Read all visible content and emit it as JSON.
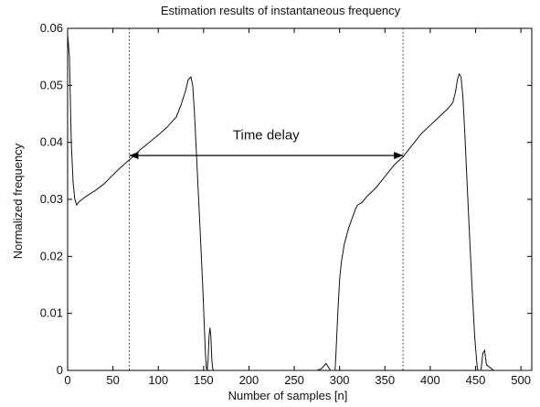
{
  "chart_data": {
    "type": "line",
    "title": "Estimation results of instantaneous frequency",
    "xlabel": "Number of samples [n]",
    "ylabel": "Normalized frequency",
    "xlim": [
      0,
      512
    ],
    "ylim": [
      0,
      0.06
    ],
    "xticks": [
      "0",
      "50",
      "100",
      "150",
      "200",
      "250",
      "300",
      "350",
      "400",
      "450",
      "500"
    ],
    "yticks": [
      "0",
      "0.01",
      "0.02",
      "0.03",
      "0.04",
      "0.05",
      "0.06"
    ],
    "grid": false,
    "series": [
      {
        "x": [
          0,
          2,
          4,
          6,
          8,
          10,
          12,
          20,
          30,
          40,
          50,
          60,
          70,
          80,
          90,
          100,
          110,
          120,
          125,
          130,
          133,
          136,
          138,
          140,
          143,
          146,
          149,
          151,
          152,
          153,
          154,
          155,
          156,
          157,
          158,
          159,
          160,
          161,
          162,
          175,
          200,
          250,
          275,
          280,
          285,
          290,
          295,
          296,
          298,
          300,
          302,
          305,
          310,
          318,
          320,
          325,
          330,
          340,
          350,
          360,
          370,
          380,
          390,
          400,
          410,
          420,
          425,
          428,
          430,
          432,
          434,
          436,
          438,
          440,
          443,
          446,
          449,
          451,
          452,
          453,
          454,
          456,
          458,
          460,
          462,
          470,
          490,
          512
        ],
        "y": [
          0.059,
          0.055,
          0.04,
          0.033,
          0.03,
          0.029,
          0.0295,
          0.0305,
          0.0315,
          0.0327,
          0.0343,
          0.0358,
          0.0372,
          0.0387,
          0.04,
          0.0413,
          0.0427,
          0.0445,
          0.0465,
          0.049,
          0.051,
          0.0515,
          0.05,
          0.045,
          0.035,
          0.025,
          0.015,
          0.007,
          0.003,
          0.0005,
          0.0,
          0.002,
          0.006,
          0.0075,
          0.006,
          0.002,
          0.0003,
          0.0,
          0.0,
          0.0,
          0.0,
          0.0,
          0.0,
          0.0003,
          0.0012,
          0.0,
          0.0,
          0.003,
          0.01,
          0.016,
          0.019,
          0.022,
          0.025,
          0.0285,
          0.029,
          0.0295,
          0.0305,
          0.032,
          0.034,
          0.036,
          0.0375,
          0.0395,
          0.0415,
          0.043,
          0.0445,
          0.046,
          0.047,
          0.049,
          0.051,
          0.052,
          0.0515,
          0.048,
          0.042,
          0.035,
          0.025,
          0.015,
          0.006,
          0.002,
          0.0003,
          0.0,
          0.0,
          0.0,
          0.003,
          0.0035,
          0.001,
          0.0,
          0.0,
          0.0
        ]
      }
    ],
    "reference_lines_x": [
      68,
      370
    ],
    "annotations": [
      {
        "text": "Time delay",
        "arrow_from_x": 68,
        "arrow_to_x": 370,
        "arrow_y": 0.0377,
        "text_x": 219,
        "text_y": 0.0405
      }
    ]
  }
}
